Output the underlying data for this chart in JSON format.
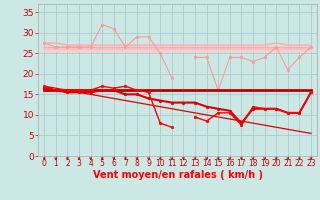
{
  "background_color": "#cce8e4",
  "grid_color": "#aacccc",
  "x_labels": [
    "0",
    "1",
    "2",
    "3",
    "4",
    "5",
    "6",
    "7",
    "8",
    "9",
    "10",
    "11",
    "12",
    "13",
    "14",
    "15",
    "16",
    "17",
    "18",
    "19",
    "20",
    "21",
    "22",
    "23"
  ],
  "xlabel": "Vent moyen/en rafales ( km/h )",
  "ylim": [
    0,
    37
  ],
  "yticks": [
    0,
    5,
    10,
    15,
    20,
    25,
    30,
    35
  ],
  "series": [
    {
      "name": "pink_flat1",
      "color": "#ffaaaa",
      "lw": 1.0,
      "marker": null,
      "data": [
        27.5,
        27.5,
        27.0,
        27.0,
        27.0,
        27.0,
        27.0,
        27.0,
        27.0,
        27.0,
        27.0,
        27.0,
        27.0,
        27.0,
        27.0,
        27.0,
        27.0,
        27.0,
        27.0,
        27.0,
        27.5,
        27.0,
        27.0,
        27.0
      ]
    },
    {
      "name": "pink_flat2",
      "color": "#ffaaaa",
      "lw": 1.0,
      "marker": null,
      "data": [
        26.5,
        26.5,
        26.5,
        26.5,
        26.5,
        26.5,
        26.5,
        26.5,
        26.5,
        26.5,
        26.5,
        26.5,
        26.5,
        26.5,
        26.5,
        26.5,
        26.5,
        26.5,
        26.5,
        26.5,
        26.5,
        26.5,
        26.5,
        26.5
      ]
    },
    {
      "name": "pink_flat3",
      "color": "#ffbbbb",
      "lw": 1.2,
      "marker": null,
      "data": [
        26.0,
        26.0,
        26.0,
        26.0,
        26.0,
        26.0,
        26.0,
        26.0,
        26.0,
        26.0,
        26.0,
        26.0,
        26.0,
        26.0,
        26.0,
        26.0,
        26.0,
        26.0,
        26.0,
        26.0,
        26.0,
        26.0,
        26.0,
        26.0
      ]
    },
    {
      "name": "pink_flat4",
      "color": "#ffcccc",
      "lw": 1.5,
      "marker": null,
      "data": [
        25.5,
        25.5,
        25.5,
        25.5,
        25.5,
        25.5,
        25.5,
        25.5,
        25.5,
        25.5,
        25.5,
        25.5,
        25.5,
        25.5,
        25.5,
        25.5,
        25.5,
        25.5,
        25.5,
        25.5,
        25.5,
        25.5,
        25.5,
        25.5
      ]
    },
    {
      "name": "pink_jagged",
      "color": "#ff9999",
      "lw": 0.8,
      "marker": "o",
      "markersize": 2.0,
      "data": [
        27.5,
        26.5,
        26.5,
        26.5,
        26.5,
        32.0,
        31.0,
        26.5,
        29.0,
        29.0,
        25.0,
        19.0,
        null,
        24.0,
        24.0,
        16.0,
        24.0,
        24.0,
        23.0,
        24.0,
        26.5,
        21.0,
        24.0,
        26.5
      ]
    },
    {
      "name": "dark_red_flat",
      "color": "#bb0000",
      "lw": 2.0,
      "marker": null,
      "data": [
        16.0,
        16.0,
        16.0,
        16.0,
        16.0,
        16.0,
        16.0,
        16.0,
        16.0,
        16.0,
        16.0,
        16.0,
        16.0,
        16.0,
        16.0,
        16.0,
        16.0,
        16.0,
        16.0,
        16.0,
        16.0,
        16.0,
        16.0,
        16.0
      ]
    },
    {
      "name": "diagonal_thin",
      "color": "#dd0000",
      "lw": 0.9,
      "marker": null,
      "data": [
        17.0,
        16.5,
        16.0,
        15.5,
        15.0,
        14.5,
        14.0,
        13.5,
        13.0,
        12.5,
        12.0,
        11.5,
        11.0,
        10.5,
        10.0,
        9.5,
        9.0,
        8.5,
        8.0,
        7.5,
        7.0,
        6.5,
        6.0,
        5.5
      ]
    },
    {
      "name": "red_dashed_markers",
      "color": "#dd0000",
      "lw": 1.5,
      "marker": "o",
      "markersize": 2.0,
      "data": [
        16.5,
        16.0,
        15.5,
        15.5,
        15.5,
        16.0,
        16.0,
        15.0,
        15.0,
        14.0,
        13.5,
        13.0,
        13.0,
        13.0,
        12.0,
        11.5,
        11.0,
        8.0,
        11.5,
        11.5,
        11.5,
        10.5,
        10.5,
        15.5
      ]
    },
    {
      "name": "red_jagged_bold",
      "color": "#ff0000",
      "lw": 1.0,
      "marker": "o",
      "markersize": 2.0,
      "data": [
        17.0,
        16.0,
        16.0,
        16.0,
        16.0,
        17.0,
        16.5,
        17.0,
        16.0,
        15.5,
        8.0,
        7.0,
        null,
        9.5,
        8.5,
        10.5,
        10.5,
        7.5,
        12.0,
        11.5,
        11.5,
        10.5,
        10.5,
        15.5
      ]
    }
  ],
  "arrow_color": "#cc0000",
  "tick_label_color": "#cc0000",
  "tick_label_fontsize": 5.5,
  "xlabel_fontsize": 7,
  "ytick_fontsize": 6.5
}
